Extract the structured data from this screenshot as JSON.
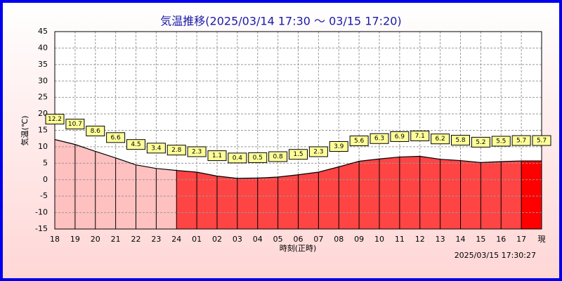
{
  "chart_data": {
    "type": "area",
    "title": "気温推移(2025/03/14 17:30 ～ 03/15 17:20)",
    "x_label": "時刻(正時)",
    "y_label": "気温(℃)",
    "timestamp": "2025/03/15 17:30:27",
    "categories": [
      "18",
      "19",
      "20",
      "21",
      "22",
      "23",
      "24",
      "01",
      "02",
      "03",
      "04",
      "05",
      "06",
      "07",
      "08",
      "09",
      "10",
      "11",
      "12",
      "13",
      "14",
      "15",
      "16",
      "17",
      "現"
    ],
    "values": [
      12.2,
      10.7,
      8.6,
      6.6,
      4.5,
      3.4,
      2.8,
      2.3,
      1.1,
      0.4,
      0.5,
      0.8,
      1.5,
      2.3,
      3.9,
      5.6,
      6.3,
      6.9,
      7.1,
      6.2,
      5.8,
      5.2,
      5.5,
      5.7,
      5.7
    ],
    "fill_colors": [
      "#ffc0c0",
      "#ffc0c0",
      "#ffc0c0",
      "#ffc0c0",
      "#ffc0c0",
      "#ffc0c0",
      "#ff4444",
      "#ff4444",
      "#ff4444",
      "#ff4444",
      "#ff4444",
      "#ff4444",
      "#ff4444",
      "#ff4444",
      "#ff4444",
      "#ff4444",
      "#ff4444",
      "#ff4444",
      "#ff4444",
      "#ff4444",
      "#ff4444",
      "#ff4444",
      "#ff4444",
      "#ff0000"
    ],
    "line_color": "#000000",
    "label_color": "#ffff99",
    "ylim": [
      -15,
      45
    ],
    "yticks": [
      -15,
      -10,
      -5,
      0,
      5,
      10,
      15,
      20,
      25,
      30,
      35,
      40,
      45
    ],
    "grid": true
  }
}
